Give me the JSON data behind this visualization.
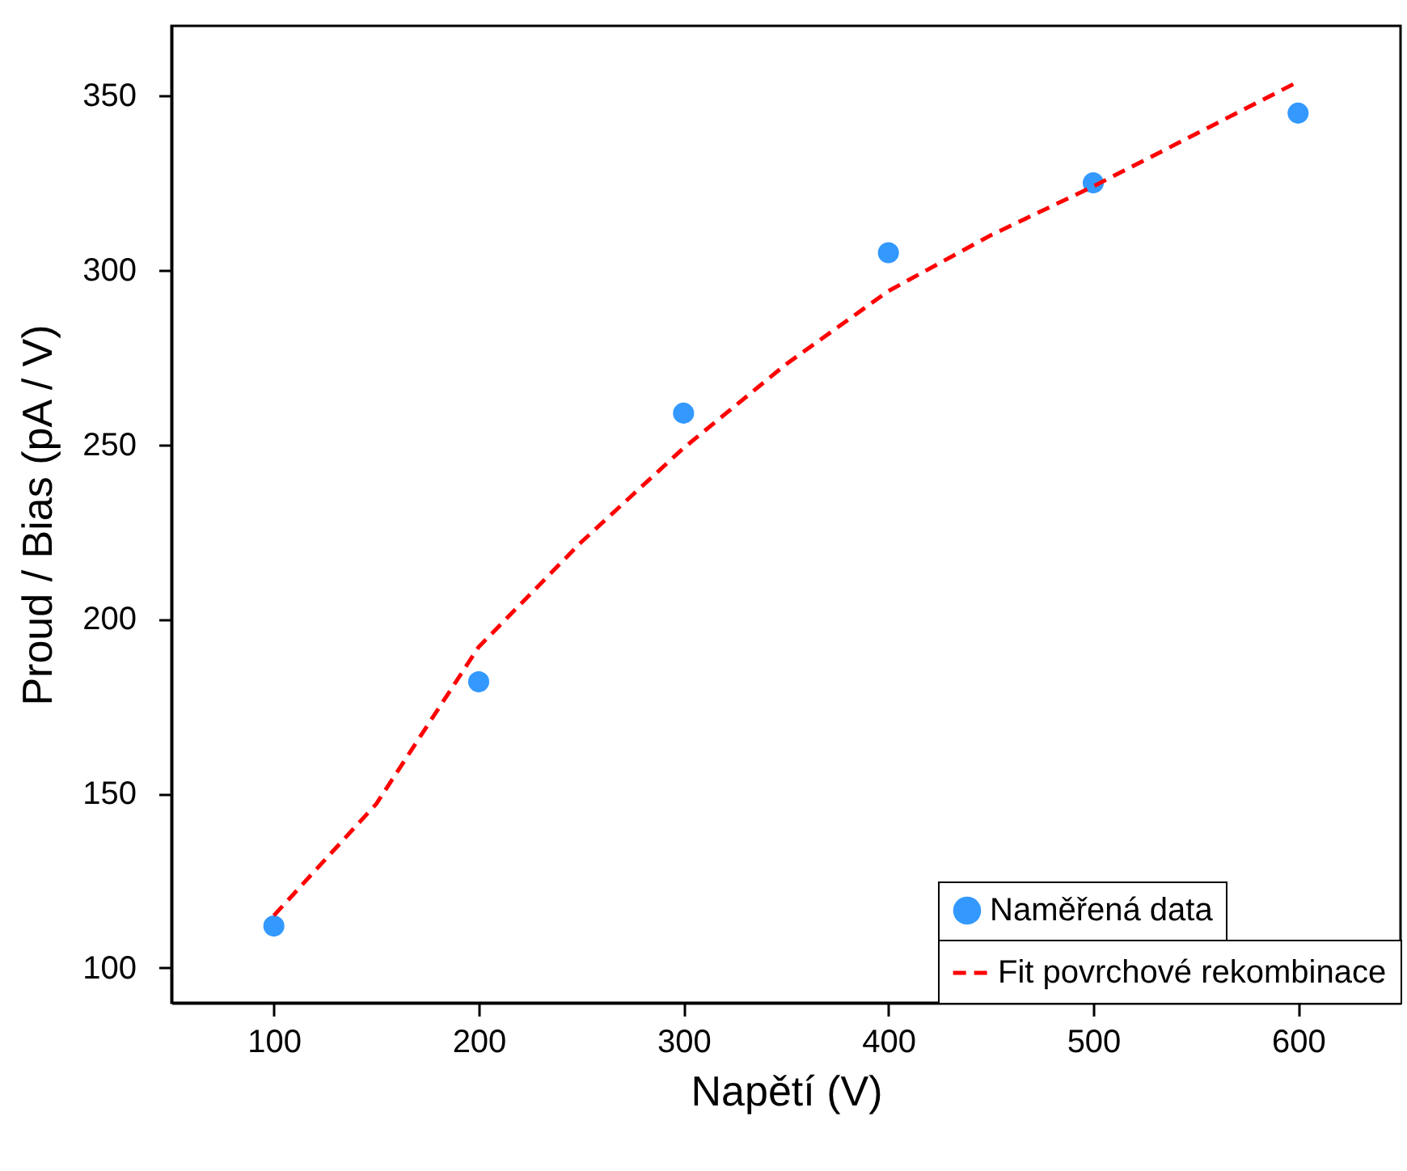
{
  "chart_data": {
    "type": "scatter",
    "xlabel": "Napětí (V)",
    "ylabel": "Proud / Bias (pA / V)",
    "xlim": [
      50,
      650
    ],
    "ylim": [
      90,
      370
    ],
    "xticks": [
      100,
      200,
      300,
      400,
      500,
      600
    ],
    "yticks": [
      100,
      150,
      200,
      250,
      300,
      350
    ],
    "grid": false,
    "legend": "bottom right",
    "marker": "circle",
    "series": [
      {
        "name": "Naměřená data",
        "type": "scatter",
        "color": "#3399ff",
        "x": [
          100,
          200,
          300,
          400,
          500,
          600
        ],
        "values": [
          112,
          182,
          259,
          305,
          325,
          345
        ]
      },
      {
        "name": "Fit povrchové rekombinace",
        "type": "line",
        "line_style": "dashed",
        "marker": "none",
        "color": "#ff0000",
        "x": [
          100,
          150,
          200,
          250,
          300,
          350,
          400,
          450,
          500,
          550,
          600
        ],
        "values": [
          115,
          147,
          192,
          222,
          249,
          273,
          294,
          310,
          324,
          339,
          354
        ]
      }
    ]
  }
}
